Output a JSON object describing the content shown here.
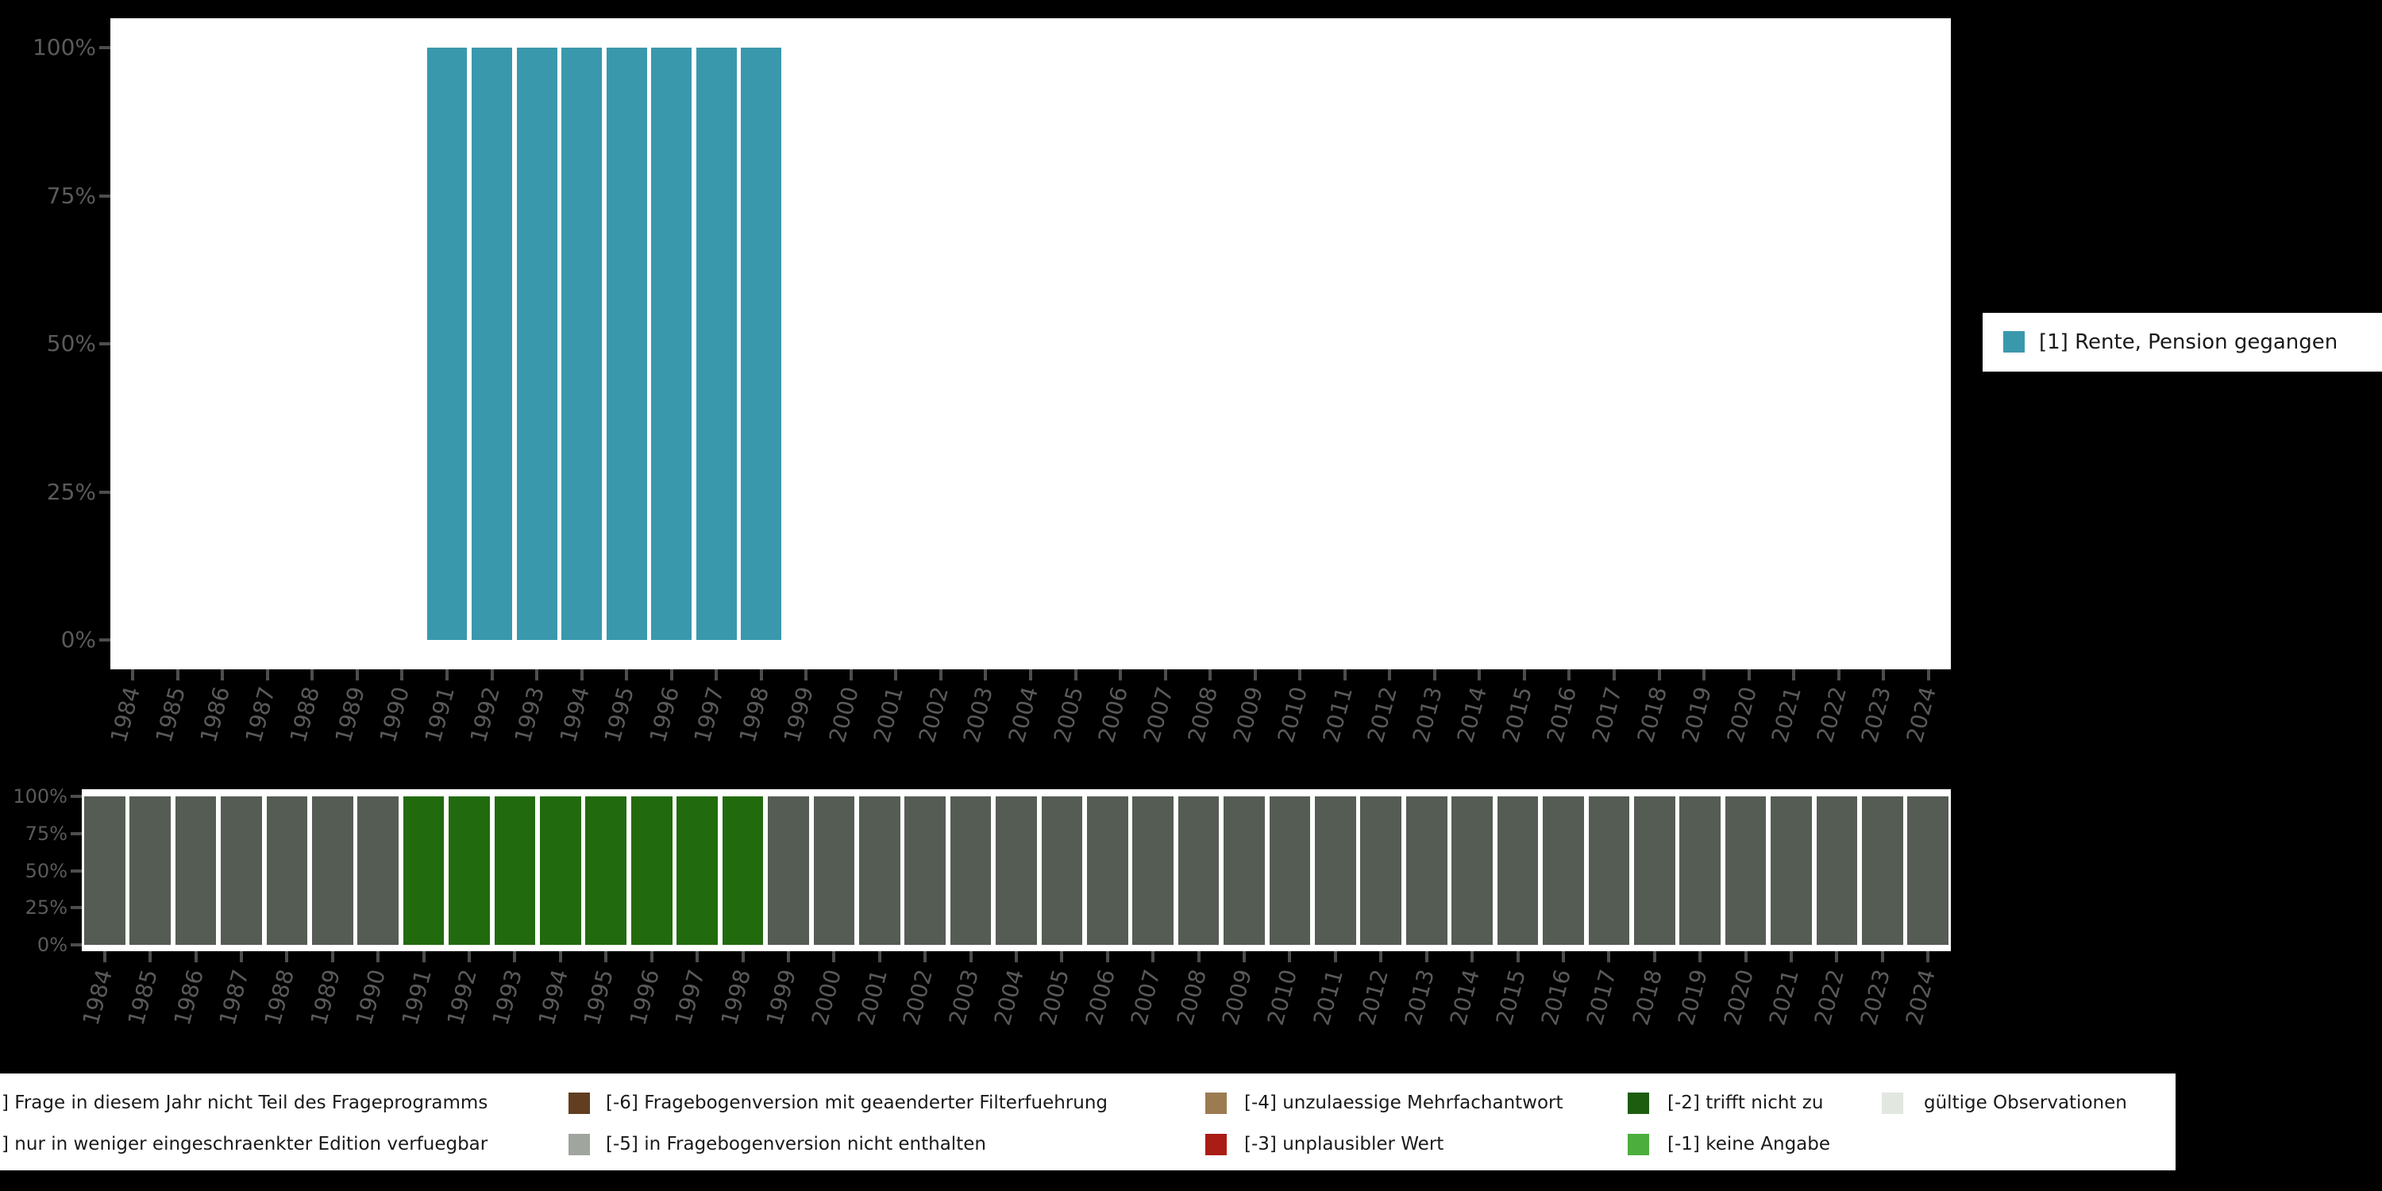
{
  "background_color": "#000000",
  "panel_color": "#FFFFFF",
  "axis": {
    "tick_color": "#4d4d4d",
    "label_color": "#5a5a5a"
  },
  "percent_ticks": [
    "0%",
    "25%",
    "50%",
    "75%",
    "100%"
  ],
  "years": [
    "1984",
    "1985",
    "1986",
    "1987",
    "1988",
    "1989",
    "1990",
    "1991",
    "1992",
    "1993",
    "1994",
    "1995",
    "1996",
    "1997",
    "1998",
    "1999",
    "2000",
    "2001",
    "2002",
    "2003",
    "2004",
    "2005",
    "2006",
    "2007",
    "2008",
    "2009",
    "2010",
    "2011",
    "2012",
    "2013",
    "2014",
    "2015",
    "2016",
    "2017",
    "2018",
    "2019",
    "2020",
    "2021",
    "2022",
    "2023",
    "2024"
  ],
  "top_chart": {
    "legend_label": "[1] Rente, Pension gegangen",
    "legend_swatch_color": "#3A98AD",
    "bar_color": "#3A98AD",
    "bar_years": [
      "1991",
      "1992",
      "1993",
      "1994",
      "1995",
      "1996",
      "1997",
      "1998"
    ],
    "bar_value_percent": 100
  },
  "bottom_chart": {
    "gray_color": "#555C54",
    "green_color": "#216B0E",
    "green_years": [
      "1991",
      "1992",
      "1993",
      "1994",
      "1995",
      "1996",
      "1997",
      "1998"
    ]
  },
  "missing_legend": {
    "items": [
      {
        "label": "] Frage in diesem Jahr nicht Teil des Frageprogramms",
        "swatch_color": null
      },
      {
        "label": "] nur in weniger eingeschraenkter Edition verfuegbar",
        "swatch_color": null
      },
      {
        "label": "[-6] Fragebogenversion mit geaenderter Filterfuehrung",
        "swatch_color": "#613E1F"
      },
      {
        "label": "[-5] in Fragebogenversion nicht enthalten",
        "swatch_color": "#A0A69E"
      },
      {
        "label": "[-4] unzulaessige Mehrfachantwort",
        "swatch_color": "#9C7B52"
      },
      {
        "label": "[-3] unplausibler Wert",
        "swatch_color": "#A91D15"
      },
      {
        "label": "[-2] trifft nicht zu",
        "swatch_color": "#1D5D10"
      },
      {
        "label": "[-1] keine Angabe",
        "swatch_color": "#4CAE3D"
      },
      {
        "label": "gültige Observationen",
        "swatch_color": "#E2E7DF"
      }
    ]
  },
  "chart_data": [
    {
      "type": "bar",
      "title": "",
      "xlabel": "",
      "ylabel": "",
      "ylim": [
        0,
        100
      ],
      "y_tick_labels": [
        "0%",
        "25%",
        "50%",
        "75%",
        "100%"
      ],
      "legend_position": "right",
      "x": [
        "1984",
        "1985",
        "1986",
        "1987",
        "1988",
        "1989",
        "1990",
        "1991",
        "1992",
        "1993",
        "1994",
        "1995",
        "1996",
        "1997",
        "1998",
        "1999",
        "2000",
        "2001",
        "2002",
        "2003",
        "2004",
        "2005",
        "2006",
        "2007",
        "2008",
        "2009",
        "2010",
        "2011",
        "2012",
        "2013",
        "2014",
        "2015",
        "2016",
        "2017",
        "2018",
        "2019",
        "2020",
        "2021",
        "2022",
        "2023",
        "2024"
      ],
      "series": [
        {
          "name": "[1] Rente, Pension gegangen",
          "color": "#3A98AD",
          "values": [
            null,
            null,
            null,
            null,
            null,
            null,
            null,
            100,
            100,
            100,
            100,
            100,
            100,
            100,
            100,
            null,
            null,
            null,
            null,
            null,
            null,
            null,
            null,
            null,
            null,
            null,
            null,
            null,
            null,
            null,
            null,
            null,
            null,
            null,
            null,
            null,
            null,
            null,
            null,
            null,
            null
          ]
        }
      ]
    },
    {
      "type": "bar",
      "title": "",
      "xlabel": "",
      "ylabel": "",
      "ylim": [
        0,
        100
      ],
      "y_tick_labels": [
        "0%",
        "25%",
        "50%",
        "75%",
        "100%"
      ],
      "legend_position": "bottom",
      "x": [
        "1984",
        "1985",
        "1986",
        "1987",
        "1988",
        "1989",
        "1990",
        "1991",
        "1992",
        "1993",
        "1994",
        "1995",
        "1996",
        "1997",
        "1998",
        "1999",
        "2000",
        "2001",
        "2002",
        "2003",
        "2004",
        "2005",
        "2006",
        "2007",
        "2008",
        "2009",
        "2010",
        "2011",
        "2012",
        "2013",
        "2014",
        "2015",
        "2016",
        "2017",
        "2018",
        "2019",
        "2020",
        "2021",
        "2022",
        "2023",
        "2024"
      ],
      "series": [
        {
          "name": "gray (Frage nicht Teil des Frageprogramms)",
          "color": "#555C54",
          "values": [
            100,
            100,
            100,
            100,
            100,
            100,
            100,
            0,
            0,
            0,
            0,
            0,
            0,
            0,
            0,
            100,
            100,
            100,
            100,
            100,
            100,
            100,
            100,
            100,
            100,
            100,
            100,
            100,
            100,
            100,
            100,
            100,
            100,
            100,
            100,
            100,
            100,
            100,
            100,
            100,
            100
          ]
        },
        {
          "name": "green (trifft nicht zu)",
          "color": "#216B0E",
          "values": [
            0,
            0,
            0,
            0,
            0,
            0,
            0,
            100,
            100,
            100,
            100,
            100,
            100,
            100,
            100,
            0,
            0,
            0,
            0,
            0,
            0,
            0,
            0,
            0,
            0,
            0,
            0,
            0,
            0,
            0,
            0,
            0,
            0,
            0,
            0,
            0,
            0,
            0,
            0,
            0,
            0
          ]
        }
      ]
    }
  ]
}
